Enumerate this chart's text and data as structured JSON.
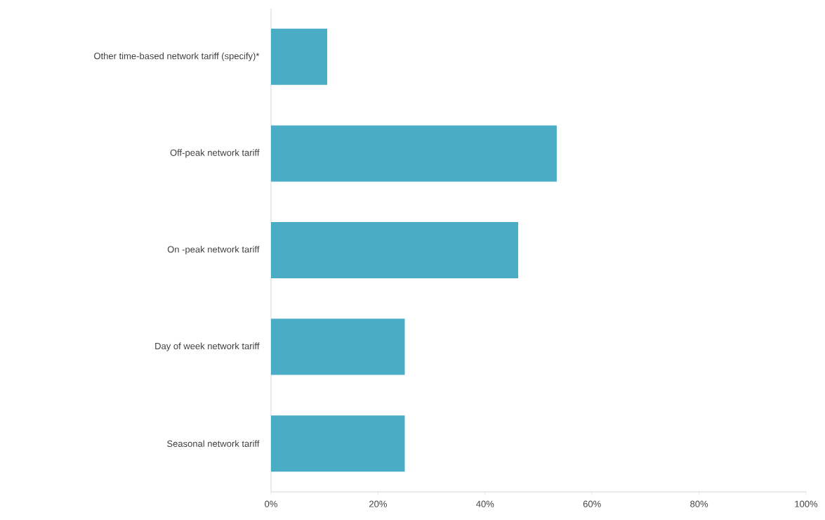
{
  "chart_data": {
    "type": "bar",
    "orientation": "horizontal",
    "categories": [
      "Other time-based network tariff (specify)*",
      "Off-peak network tariff",
      "On -peak network tariff",
      "Day of week network tariff",
      "Seasonal network tariff"
    ],
    "values": [
      10.5,
      53.4,
      46.2,
      25,
      25
    ],
    "color": "#4bacc6",
    "xlim": [
      0,
      100
    ],
    "xticks": [
      {
        "value": 0,
        "label": "0%"
      },
      {
        "value": 20,
        "label": "20%"
      },
      {
        "value": 40,
        "label": "40%"
      },
      {
        "value": 60,
        "label": "60%"
      },
      {
        "value": 80,
        "label": "80%"
      },
      {
        "value": 100,
        "label": "100%"
      }
    ],
    "grid": false
  }
}
